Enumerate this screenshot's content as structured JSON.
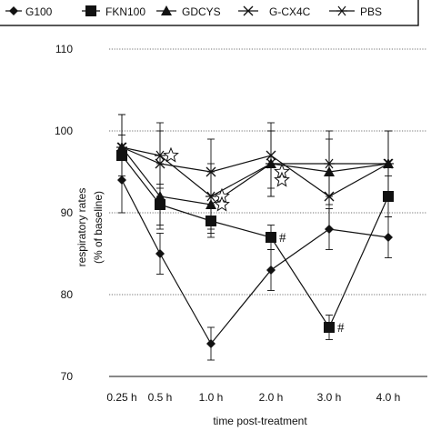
{
  "chart_data": {
    "type": "line",
    "categories": [
      "0.25 h",
      "0.5 h",
      "1.0 h",
      "2.0 h",
      "3.0 h",
      "4.0 h"
    ],
    "xlabel": "time post-treatment",
    "ylabel": [
      "respiratory rates",
      "(% of baseline)"
    ],
    "ylim": [
      70,
      110
    ],
    "yticks": [
      70,
      80,
      90,
      100,
      110
    ],
    "grid": "horizontal",
    "legend_position": "top",
    "series": [
      {
        "name": "G100",
        "marker": "diamond",
        "values": [
          94,
          85,
          74,
          83,
          88,
          87
        ],
        "errors": [
          4,
          2.5,
          2,
          2.5,
          2.5,
          2.5
        ]
      },
      {
        "name": "FKN100",
        "marker": "square",
        "values": [
          97,
          91,
          89,
          87,
          76,
          92
        ],
        "errors": [
          2.5,
          2.5,
          1.5,
          1.5,
          1.5,
          2.5
        ]
      },
      {
        "name": "GDCYS",
        "marker": "triangle",
        "values": [
          98,
          92,
          91,
          96,
          95,
          96
        ],
        "errors": [
          4,
          4,
          4,
          4,
          4,
          4
        ]
      },
      {
        "name": "G-CX4C",
        "marker": "x",
        "values": [
          98,
          96,
          95,
          97,
          92,
          96
        ],
        "errors": [
          4,
          4,
          4,
          4,
          4,
          4
        ]
      },
      {
        "name": "PBS",
        "marker": "asterisk",
        "values": [
          98,
          97,
          92,
          96,
          96,
          96
        ],
        "errors": [
          4,
          4,
          4,
          4,
          4,
          4
        ]
      }
    ],
    "annotations": [
      {
        "label": "#",
        "series": "FKN100",
        "category": "2.0 h"
      },
      {
        "label": "#",
        "series": "FKN100",
        "category": "3.0 h"
      }
    ],
    "star_markers": [
      {
        "category": "0.5 h",
        "value": 97
      },
      {
        "category": "1.0 h",
        "value": 92
      },
      {
        "category": "1.0 h",
        "value": 91
      },
      {
        "category": "2.0 h",
        "value": 95
      },
      {
        "category": "2.0 h",
        "value": 94
      }
    ]
  },
  "colors": {
    "line": "#111111",
    "grid": "#444444",
    "background": "#ffffff"
  }
}
